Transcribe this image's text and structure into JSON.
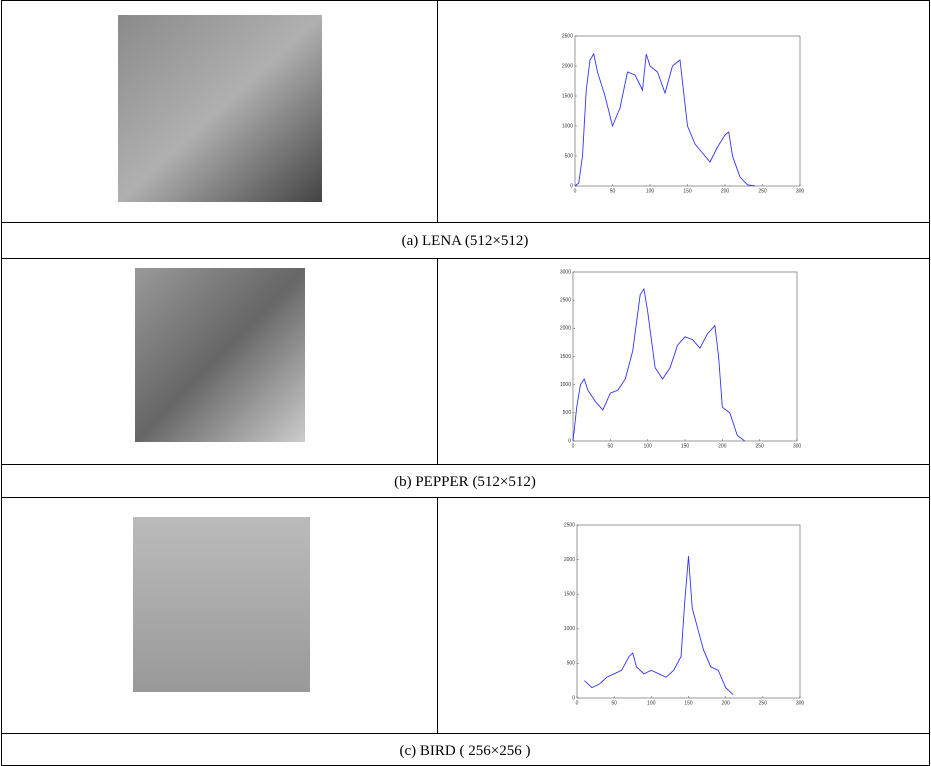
{
  "table": {
    "rows": [
      {
        "caption": "(a) LENA (512×512)",
        "histogram": {
          "type": "line",
          "color": "#3333ff",
          "x": [
            0,
            5,
            10,
            15,
            20,
            25,
            30,
            40,
            50,
            60,
            70,
            80,
            90,
            95,
            100,
            110,
            120,
            130,
            140,
            150,
            160,
            170,
            180,
            190,
            200,
            205,
            210,
            220,
            230,
            240
          ],
          "values": [
            0,
            50,
            500,
            1600,
            2100,
            2200,
            1900,
            1500,
            1000,
            1300,
            1900,
            1850,
            1600,
            2200,
            2000,
            1900,
            1550,
            2000,
            2100,
            1000,
            700,
            550,
            400,
            650,
            850,
            900,
            500,
            150,
            20,
            0
          ],
          "xlim": [
            0,
            300
          ],
          "ylim": [
            0,
            2500
          ],
          "xticks": [
            0,
            50,
            100,
            150,
            200,
            250,
            300
          ],
          "yticks": [
            0,
            500,
            1000,
            1500,
            2000,
            2500
          ]
        }
      },
      {
        "caption": "(b) PEPPER (512×512)",
        "histogram": {
          "type": "line",
          "color": "#3333ff",
          "x": [
            0,
            5,
            10,
            15,
            20,
            30,
            40,
            50,
            60,
            70,
            80,
            90,
            95,
            100,
            110,
            120,
            130,
            140,
            150,
            160,
            170,
            180,
            190,
            195,
            200,
            210,
            220,
            230
          ],
          "values": [
            0,
            600,
            1000,
            1100,
            900,
            700,
            550,
            850,
            900,
            1100,
            1600,
            2600,
            2700,
            2300,
            1300,
            1100,
            1300,
            1700,
            1850,
            1800,
            1650,
            1900,
            2050,
            1500,
            600,
            500,
            100,
            0
          ],
          "xlim": [
            0,
            300
          ],
          "ylim": [
            0,
            3000
          ],
          "xticks": [
            0,
            50,
            100,
            150,
            200,
            250,
            300
          ],
          "yticks": [
            0,
            500,
            1000,
            1500,
            2000,
            2500,
            3000
          ]
        }
      },
      {
        "caption": "(c) BIRD ( 256×256 )",
        "histogram": {
          "type": "line",
          "color": "#3333ff",
          "x": [
            10,
            20,
            30,
            40,
            50,
            60,
            70,
            75,
            80,
            90,
            100,
            110,
            120,
            130,
            140,
            145,
            150,
            155,
            160,
            170,
            180,
            190,
            200,
            210
          ],
          "values": [
            250,
            150,
            200,
            300,
            350,
            400,
            600,
            650,
            450,
            350,
            400,
            350,
            300,
            400,
            600,
            1400,
            2050,
            1300,
            1100,
            700,
            450,
            400,
            150,
            50
          ],
          "xlim": [
            0,
            300
          ],
          "ylim": [
            0,
            2500
          ],
          "xticks": [
            0,
            50,
            100,
            150,
            200,
            250,
            300
          ],
          "yticks": [
            0,
            500,
            1000,
            1500,
            2000,
            2500
          ]
        }
      }
    ]
  }
}
